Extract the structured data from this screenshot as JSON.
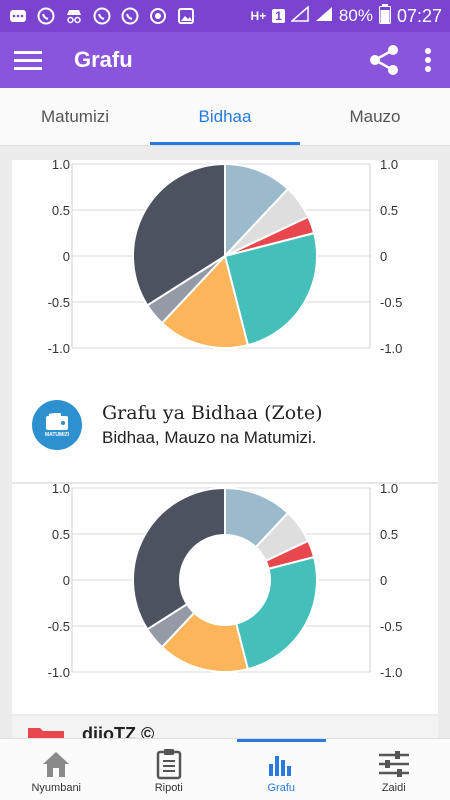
{
  "status_bar": {
    "battery": "80%",
    "time": "07:27",
    "network": "H+",
    "sim": "1",
    "icons": [
      "chat-icon",
      "whatsapp-icon",
      "incognito-icon",
      "whatsapp-icon",
      "whatsapp-icon",
      "sync-icon",
      "image-icon"
    ]
  },
  "app_bar": {
    "title": "Grafu",
    "icons": [
      "menu-icon",
      "share-icon",
      "more-icon"
    ]
  },
  "tabs": [
    {
      "label": "Matumizi",
      "active": false
    },
    {
      "label": "Bidhaa",
      "active": true
    },
    {
      "label": "Mauzo",
      "active": false
    }
  ],
  "colors": {
    "accent": "#2a7be0",
    "appbar": "#8a55dd",
    "statusbar": "#7a44d0"
  },
  "chart_data": [
    {
      "type": "pie",
      "yticks": [
        "1.0",
        "0.5",
        "0",
        "-0.5",
        "-1.0"
      ],
      "slices": [
        {
          "value": 12,
          "color": "#9bbbcd"
        },
        {
          "value": 6,
          "color": "#dedede"
        },
        {
          "value": 3,
          "color": "#e8474e"
        },
        {
          "value": 25,
          "color": "#45bfba"
        },
        {
          "value": 16,
          "color": "#fdb55b"
        },
        {
          "value": 4,
          "color": "#949aa6"
        },
        {
          "value": 34,
          "color": "#4c5260"
        }
      ]
    },
    {
      "type": "pie",
      "donut": true,
      "yticks": [
        "1.0",
        "0.5",
        "0",
        "-0.5",
        "-1.0"
      ],
      "slices": [
        {
          "value": 12,
          "color": "#9bbbcd"
        },
        {
          "value": 6,
          "color": "#dedede"
        },
        {
          "value": 3,
          "color": "#e8474e"
        },
        {
          "value": 25,
          "color": "#45bfba"
        },
        {
          "value": 16,
          "color": "#fdb55b"
        },
        {
          "value": 4,
          "color": "#949aa6"
        },
        {
          "value": 34,
          "color": "#4c5260"
        }
      ]
    }
  ],
  "card_info": {
    "logo_text": "MATUMIZI",
    "title": "Grafu ya Bidhaa (Zote)",
    "subtitle": "Bidhaa, Mauzo na Matumizi."
  },
  "footer_card": {
    "brand": "dijoTZ ©"
  },
  "bottom_nav": [
    {
      "label": "Nyumbani",
      "icon": "home-icon",
      "active": false
    },
    {
      "label": "Ripoti",
      "icon": "report-icon",
      "active": false
    },
    {
      "label": "Grafu",
      "icon": "bar-chart-icon",
      "active": true
    },
    {
      "label": "Zaidi",
      "icon": "sliders-icon",
      "active": false
    }
  ]
}
